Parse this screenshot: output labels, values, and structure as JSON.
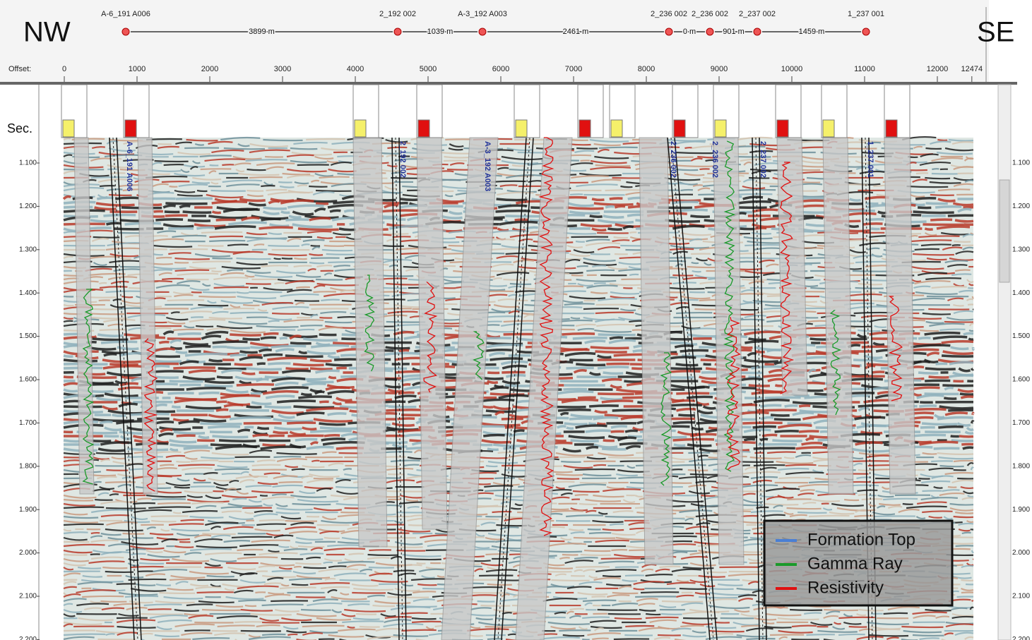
{
  "header": {
    "left_direction": "NW",
    "right_direction": "SE"
  },
  "wells": [
    {
      "name": "A-6_191 A006"
    },
    {
      "name": "2_192 002"
    },
    {
      "name": "A-3_192 A003"
    },
    {
      "name": "2_236 002"
    },
    {
      "name": "2_236 002"
    },
    {
      "name": "2_237 002"
    },
    {
      "name": "1_237 001"
    }
  ],
  "distances": [
    "3899 m",
    "1039 m",
    "2461 m",
    "0 m",
    "901 m",
    "1459 m"
  ],
  "offset_axis": {
    "label": "Offset:",
    "ticks": [
      0,
      1000,
      2000,
      3000,
      4000,
      5000,
      6000,
      7000,
      8000,
      9000,
      10000,
      11000,
      12000,
      12474
    ]
  },
  "time_axis": {
    "label": "Sec.",
    "ticks": [
      {
        "value": 1.1,
        "label": "1.100"
      },
      {
        "value": 1.2,
        "label": "1.200"
      },
      {
        "value": 1.3,
        "label": "1.300"
      },
      {
        "value": 1.4,
        "label": "1.400"
      },
      {
        "value": 1.5,
        "label": "1.500"
      },
      {
        "value": 1.6,
        "label": "1.600"
      },
      {
        "value": 1.7,
        "label": "1.700"
      },
      {
        "value": 1.8,
        "label": "1.800"
      },
      {
        "value": 1.9,
        "label": "1.900"
      },
      {
        "value": 2.0,
        "label": "2.000"
      },
      {
        "value": 2.1,
        "label": "2.100"
      },
      {
        "value": 2.2,
        "label": "2.200"
      }
    ]
  },
  "legend": [
    {
      "label": "Formation Top",
      "color": "#4a7fd4"
    },
    {
      "label": "Gamma Ray",
      "color": "#1a9a2a"
    },
    {
      "label": "Resistivity",
      "color": "#e01010"
    }
  ]
}
